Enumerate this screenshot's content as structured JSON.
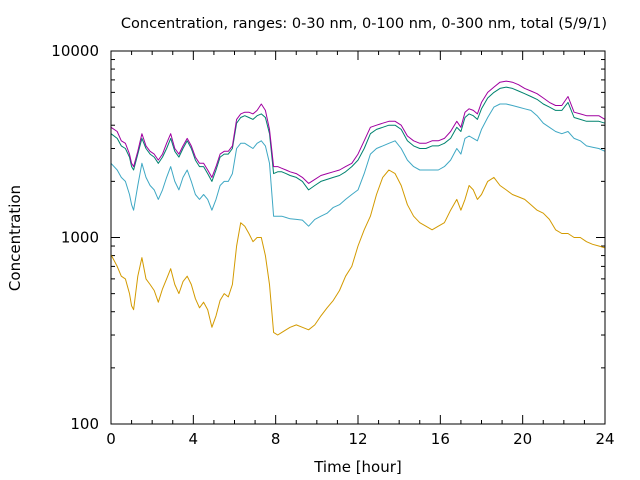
{
  "chart_data": {
    "type": "line",
    "title": "Concentration, ranges: 0-30 nm, 0-100 nm, 0-300 nm, total (5/9/1)",
    "xlabel": "Time [hour]",
    "ylabel": "Concentration",
    "xlim": [
      0,
      24
    ],
    "ylim": [
      100,
      10000
    ],
    "y_scale": "log",
    "grid": false,
    "xticks": [
      "0",
      "4",
      "8",
      "12",
      "16",
      "20",
      "24"
    ],
    "yticks": [
      "100",
      "1000",
      "10000"
    ],
    "colors": [
      "#d39a00",
      "#3fa8c4",
      "#00826f",
      "#a000a0"
    ],
    "series": [
      {
        "x": [
          0,
          0.3,
          0.5,
          0.7,
          0.9,
          1.0,
          1.1,
          1.3,
          1.5,
          1.7,
          1.9,
          2.1,
          2.3,
          2.5,
          2.7,
          2.9,
          3.1,
          3.3,
          3.5,
          3.7,
          3.9,
          4.1,
          4.3,
          4.5,
          4.7,
          4.9,
          5.1,
          5.3,
          5.5,
          5.7,
          5.9,
          6.1,
          6.3,
          6.5,
          6.7,
          6.9,
          7.1,
          7.3,
          7.5,
          7.7,
          7.9,
          8.1,
          8.3,
          8.5,
          8.7,
          9.0,
          9.3,
          9.6,
          9.9,
          10.2,
          10.5,
          10.8,
          11.1,
          11.4,
          11.7,
          12.0,
          12.3,
          12.6,
          12.9,
          13.2,
          13.5,
          13.8,
          14.1,
          14.4,
          14.7,
          15.0,
          15.3,
          15.6,
          15.9,
          16.2,
          16.5,
          16.8,
          17.0,
          17.2,
          17.4,
          17.6,
          17.8,
          18.0,
          18.3,
          18.6,
          18.9,
          19.2,
          19.5,
          19.8,
          20.1,
          20.4,
          20.7,
          21.0,
          21.3,
          21.6,
          21.9,
          22.2,
          22.5,
          22.8,
          23.1,
          23.4,
          23.7,
          24.0
        ],
        "values": [
          810,
          700,
          620,
          600,
          500,
          430,
          410,
          620,
          780,
          600,
          560,
          520,
          450,
          530,
          600,
          680,
          560,
          500,
          580,
          620,
          560,
          470,
          420,
          450,
          410,
          330,
          380,
          460,
          500,
          480,
          560,
          900,
          1200,
          1150,
          1050,
          950,
          1000,
          1000,
          800,
          560,
          310,
          300,
          310,
          320,
          330,
          340,
          330,
          320,
          340,
          380,
          420,
          460,
          520,
          620,
          700,
          900,
          1100,
          1300,
          1700,
          2100,
          2300,
          2200,
          1900,
          1500,
          1300,
          1200,
          1150,
          1100,
          1150,
          1200,
          1400,
          1600,
          1400,
          1600,
          1900,
          1800,
          1600,
          1700,
          2000,
          2100,
          1900,
          1800,
          1700,
          1650,
          1600,
          1500,
          1400,
          1350,
          1250,
          1100,
          1050,
          1050,
          1000,
          1000,
          950,
          920,
          900,
          880
        ]
      },
      {
        "x": [
          0,
          0.3,
          0.5,
          0.7,
          0.9,
          1.0,
          1.1,
          1.3,
          1.5,
          1.7,
          1.9,
          2.1,
          2.3,
          2.5,
          2.7,
          2.9,
          3.1,
          3.3,
          3.5,
          3.7,
          3.9,
          4.1,
          4.3,
          4.5,
          4.7,
          4.9,
          5.1,
          5.3,
          5.5,
          5.7,
          5.9,
          6.1,
          6.3,
          6.5,
          6.7,
          6.9,
          7.1,
          7.3,
          7.5,
          7.7,
          7.9,
          8.1,
          8.3,
          8.5,
          8.7,
          9.0,
          9.3,
          9.6,
          9.9,
          10.2,
          10.5,
          10.8,
          11.1,
          11.4,
          11.7,
          12.0,
          12.3,
          12.6,
          12.9,
          13.2,
          13.5,
          13.8,
          14.1,
          14.4,
          14.7,
          15.0,
          15.3,
          15.6,
          15.9,
          16.2,
          16.5,
          16.8,
          17.0,
          17.2,
          17.4,
          17.6,
          17.8,
          18.0,
          18.3,
          18.6,
          18.9,
          19.2,
          19.5,
          19.8,
          20.1,
          20.4,
          20.7,
          21.0,
          21.3,
          21.6,
          21.9,
          22.2,
          22.5,
          22.8,
          23.1,
          23.4,
          23.7,
          24.0
        ],
        "values": [
          2500,
          2300,
          2100,
          2000,
          1700,
          1500,
          1400,
          1900,
          2500,
          2100,
          1900,
          1800,
          1600,
          1800,
          2100,
          2400,
          2000,
          1800,
          2100,
          2300,
          2000,
          1700,
          1600,
          1700,
          1600,
          1400,
          1600,
          1900,
          2000,
          2000,
          2200,
          3000,
          3200,
          3200,
          3100,
          3000,
          3200,
          3300,
          3100,
          2500,
          1300,
          1300,
          1300,
          1280,
          1260,
          1250,
          1240,
          1150,
          1250,
          1300,
          1350,
          1450,
          1500,
          1600,
          1700,
          1800,
          2200,
          2800,
          3000,
          3100,
          3200,
          3300,
          3000,
          2600,
          2400,
          2300,
          2300,
          2300,
          2300,
          2400,
          2600,
          3000,
          2800,
          3400,
          3500,
          3400,
          3300,
          3800,
          4400,
          5000,
          5200,
          5200,
          5100,
          5000,
          4900,
          4800,
          4500,
          4100,
          3900,
          3700,
          3600,
          3700,
          3400,
          3300,
          3100,
          3050,
          3000,
          2900
        ]
      },
      {
        "x": [
          0,
          0.3,
          0.5,
          0.7,
          0.9,
          1.0,
          1.1,
          1.3,
          1.5,
          1.7,
          1.9,
          2.1,
          2.3,
          2.5,
          2.7,
          2.9,
          3.1,
          3.3,
          3.5,
          3.7,
          3.9,
          4.1,
          4.3,
          4.5,
          4.7,
          4.9,
          5.1,
          5.3,
          5.5,
          5.7,
          5.9,
          6.1,
          6.3,
          6.5,
          6.7,
          6.9,
          7.1,
          7.3,
          7.5,
          7.7,
          7.9,
          8.1,
          8.3,
          8.5,
          8.7,
          9.0,
          9.3,
          9.6,
          9.9,
          10.2,
          10.5,
          10.8,
          11.1,
          11.4,
          11.7,
          12.0,
          12.3,
          12.6,
          12.9,
          13.2,
          13.5,
          13.8,
          14.1,
          14.4,
          14.7,
          15.0,
          15.3,
          15.6,
          15.9,
          16.2,
          16.5,
          16.8,
          17.0,
          17.2,
          17.4,
          17.6,
          17.8,
          18.0,
          18.3,
          18.6,
          18.9,
          19.2,
          19.5,
          19.8,
          20.1,
          20.4,
          20.7,
          21.0,
          21.3,
          21.6,
          21.9,
          22.2,
          22.5,
          22.8,
          23.1,
          23.4,
          23.7,
          24.0
        ],
        "values": [
          3600,
          3400,
          3100,
          3000,
          2700,
          2400,
          2300,
          2800,
          3400,
          3000,
          2800,
          2700,
          2500,
          2700,
          3000,
          3400,
          2900,
          2700,
          3000,
          3300,
          3000,
          2600,
          2400,
          2400,
          2200,
          2000,
          2300,
          2700,
          2800,
          2800,
          3000,
          4100,
          4400,
          4500,
          4400,
          4300,
          4500,
          4600,
          4400,
          3600,
          2200,
          2250,
          2250,
          2200,
          2150,
          2100,
          2000,
          1800,
          1900,
          2000,
          2050,
          2100,
          2150,
          2250,
          2400,
          2600,
          3000,
          3600,
          3800,
          3900,
          4000,
          4000,
          3800,
          3300,
          3100,
          3000,
          3000,
          3100,
          3100,
          3200,
          3400,
          3900,
          3700,
          4400,
          4600,
          4500,
          4300,
          4900,
          5600,
          6000,
          6300,
          6400,
          6300,
          6100,
          5900,
          5700,
          5500,
          5200,
          5000,
          4800,
          4800,
          5300,
          4400,
          4300,
          4200,
          4200,
          4200,
          4100
        ]
      },
      {
        "x": [
          0,
          0.3,
          0.5,
          0.7,
          0.9,
          1.0,
          1.1,
          1.3,
          1.5,
          1.7,
          1.9,
          2.1,
          2.3,
          2.5,
          2.7,
          2.9,
          3.1,
          3.3,
          3.5,
          3.7,
          3.9,
          4.1,
          4.3,
          4.5,
          4.7,
          4.9,
          5.1,
          5.3,
          5.5,
          5.7,
          5.9,
          6.1,
          6.3,
          6.5,
          6.7,
          6.9,
          7.1,
          7.3,
          7.5,
          7.7,
          7.9,
          8.1,
          8.3,
          8.5,
          8.7,
          9.0,
          9.3,
          9.6,
          9.9,
          10.2,
          10.5,
          10.8,
          11.1,
          11.4,
          11.7,
          12.0,
          12.3,
          12.6,
          12.9,
          13.2,
          13.5,
          13.8,
          14.1,
          14.4,
          14.7,
          15.0,
          15.3,
          15.6,
          15.9,
          16.2,
          16.5,
          16.8,
          17.0,
          17.2,
          17.4,
          17.6,
          17.8,
          18.0,
          18.3,
          18.6,
          18.9,
          19.2,
          19.5,
          19.8,
          20.1,
          20.4,
          20.7,
          21.0,
          21.3,
          21.6,
          21.9,
          22.2,
          22.5,
          22.8,
          23.1,
          23.4,
          23.7,
          24.0
        ],
        "values": [
          3900,
          3700,
          3300,
          3200,
          2800,
          2500,
          2400,
          2900,
          3600,
          3100,
          2900,
          2800,
          2600,
          2800,
          3200,
          3600,
          3000,
          2800,
          3100,
          3400,
          3100,
          2700,
          2500,
          2500,
          2300,
          2100,
          2400,
          2800,
          2900,
          2900,
          3100,
          4300,
          4600,
          4700,
          4700,
          4600,
          4800,
          5200,
          4800,
          3800,
          2400,
          2400,
          2350,
          2300,
          2250,
          2200,
          2100,
          1950,
          2050,
          2150,
          2200,
          2250,
          2300,
          2400,
          2500,
          2800,
          3300,
          3900,
          4000,
          4100,
          4200,
          4200,
          4000,
          3500,
          3300,
          3200,
          3200,
          3300,
          3300,
          3400,
          3700,
          4200,
          3900,
          4700,
          4900,
          4800,
          4600,
          5300,
          6000,
          6400,
          6800,
          6900,
          6800,
          6600,
          6300,
          6100,
          5900,
          5600,
          5300,
          5100,
          5100,
          5700,
          4700,
          4600,
          4500,
          4500,
          4500,
          4300
        ]
      }
    ]
  }
}
